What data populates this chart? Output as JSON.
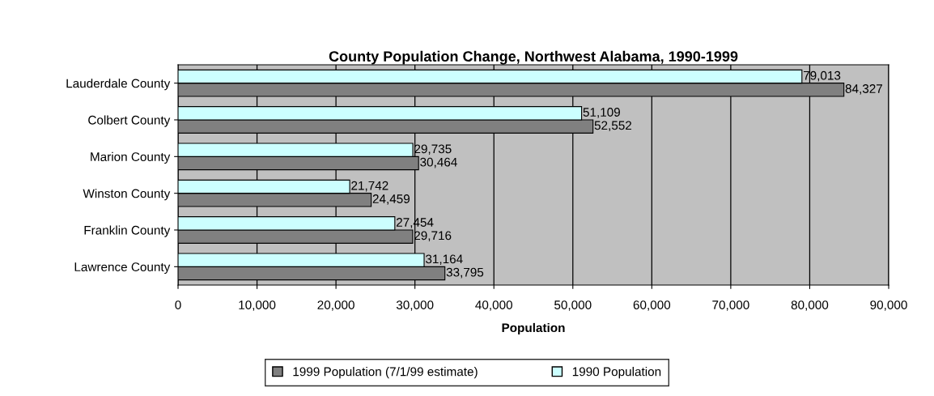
{
  "chart_data": {
    "type": "bar",
    "orientation": "horizontal",
    "title": "County Population Change, Northwest Alabama, 1990-1999",
    "xlabel": "Population",
    "categories": [
      "Lauderdale County",
      "Colbert County",
      "Marion County",
      "Winston County",
      "Franklin County",
      "Lawrence County"
    ],
    "series": [
      {
        "name": "1999 Population (7/1/99 estimate)",
        "color": "#808080",
        "values": [
          84327,
          52552,
          30464,
          24459,
          29716,
          33795
        ],
        "value_labels": [
          "84,327",
          "52,552",
          "30,464",
          "24,459",
          "29,716",
          "33,795"
        ]
      },
      {
        "name": "1990 Population",
        "color": "#ccffff",
        "values": [
          79013,
          51109,
          29735,
          21742,
          27454,
          31164
        ],
        "value_labels": [
          "79,013",
          "51,109",
          "29,735",
          "21,742",
          "27,454",
          "31,164"
        ]
      }
    ],
    "xlim": [
      0,
      90000
    ],
    "xticks": [
      0,
      {
        "value": 10000,
        "label": "10,000"
      },
      {
        "value": 20000,
        "label": "20,000"
      },
      {
        "value": 30000,
        "label": "30,000"
      },
      {
        "value": 40000,
        "label": "40,000"
      },
      {
        "value": 50000,
        "label": "50,000"
      },
      {
        "value": 60000,
        "label": "60,000"
      },
      {
        "value": 70000,
        "label": "70,000"
      },
      {
        "value": 80000,
        "label": "80,000"
      },
      {
        "value": 90000,
        "label": "90,000"
      }
    ],
    "grid": "x",
    "legend": "bottom"
  }
}
